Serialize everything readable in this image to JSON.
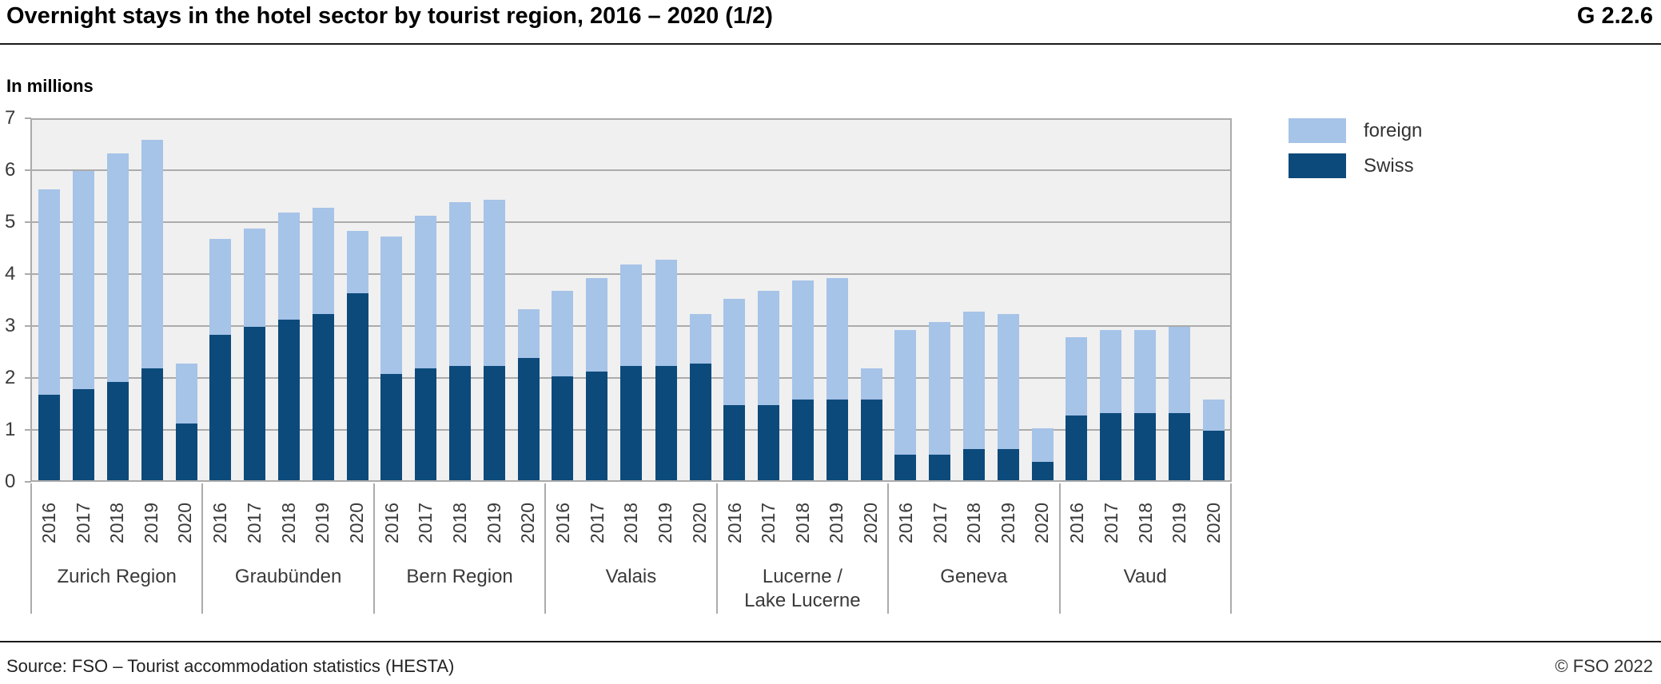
{
  "header": {
    "title": "Overnight stays in the hotel sector by tourist region, 2016 – 2020 (1/2)",
    "graph_id": "G 2.2.6"
  },
  "footer": {
    "source": "Source: FSO – Tourist accommodation statistics (HESTA)",
    "copyright": "© FSO 2022"
  },
  "chart_data": {
    "type": "bar",
    "subtype": "stacked-vertical",
    "title": "Overnight stays in the hotel sector by tourist region, 2016 – 2020 (1/2)",
    "unit_label": "In millions",
    "ylim": [
      0,
      7
    ],
    "yticks": [
      0,
      1,
      2,
      3,
      4,
      5,
      6,
      7
    ],
    "grid": "horizontal",
    "legend_position": "right",
    "legend": [
      {
        "name": "foreign",
        "color": "#a6c3e8"
      },
      {
        "name": "Swiss",
        "color": "#0c4a7b"
      }
    ],
    "categories": [
      "2016",
      "2017",
      "2018",
      "2019",
      "2020"
    ],
    "regions": [
      {
        "name": "Zurich Region",
        "label_lines": [
          "Zurich Region"
        ],
        "swiss": [
          1.65,
          1.75,
          1.9,
          2.15,
          1.1
        ],
        "foreign": [
          3.95,
          4.2,
          4.4,
          4.4,
          1.15
        ]
      },
      {
        "name": "Graubünden",
        "label_lines": [
          "Graubünden"
        ],
        "swiss": [
          2.8,
          2.95,
          3.1,
          3.2,
          3.6
        ],
        "foreign": [
          1.85,
          1.9,
          2.05,
          2.05,
          1.2
        ]
      },
      {
        "name": "Bern Region",
        "label_lines": [
          "Bern Region"
        ],
        "swiss": [
          2.05,
          2.15,
          2.2,
          2.2,
          2.35
        ],
        "foreign": [
          2.65,
          2.95,
          3.15,
          3.2,
          0.95
        ]
      },
      {
        "name": "Valais",
        "label_lines": [
          "Valais"
        ],
        "swiss": [
          2.0,
          2.1,
          2.2,
          2.2,
          2.25
        ],
        "foreign": [
          1.65,
          1.8,
          1.95,
          2.05,
          0.95
        ]
      },
      {
        "name": "Lucerne / Lake Lucerne",
        "label_lines": [
          "Lucerne /",
          "Lake Lucerne"
        ],
        "swiss": [
          1.45,
          1.45,
          1.55,
          1.55,
          1.55
        ],
        "foreign": [
          2.05,
          2.2,
          2.3,
          2.35,
          0.6
        ]
      },
      {
        "name": "Geneva",
        "label_lines": [
          "Geneva"
        ],
        "swiss": [
          0.5,
          0.5,
          0.6,
          0.6,
          0.35
        ],
        "foreign": [
          2.4,
          2.55,
          2.65,
          2.6,
          0.65
        ]
      },
      {
        "name": "Vaud",
        "label_lines": [
          "Vaud"
        ],
        "swiss": [
          1.25,
          1.3,
          1.3,
          1.3,
          0.95
        ],
        "foreign": [
          1.5,
          1.6,
          1.6,
          1.65,
          0.6
        ]
      }
    ]
  }
}
